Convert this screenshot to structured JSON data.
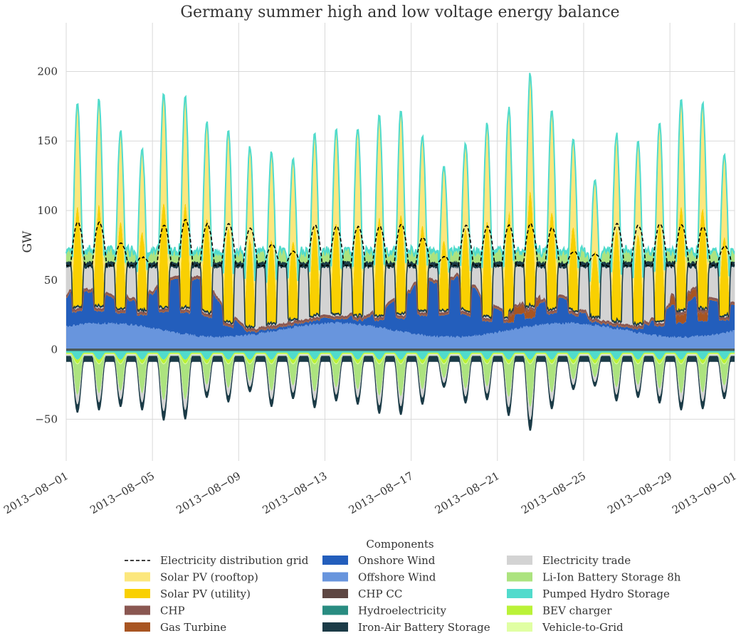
{
  "chart_data": {
    "type": "area",
    "title": "Germany summer high and low voltage energy balance",
    "xlabel": "",
    "ylabel": "GW",
    "ylim": [
      -80,
      235
    ],
    "yticks": [
      -50,
      0,
      50,
      100,
      150,
      200
    ],
    "x_start": "2013-08-01",
    "x_end": "2013-09-01",
    "xticks": [
      "2013−08−01",
      "2013−08−05",
      "2013−08−09",
      "2013−08−13",
      "2013−08−17",
      "2013−08−21",
      "2013−08−25",
      "2013−08−29",
      "2013−09−01"
    ],
    "grid": true,
    "legend_title": "Components",
    "legend_position": "bottom-center",
    "day_peaks_gw": [
      149,
      151,
      130,
      117,
      158,
      154,
      139,
      140,
      132,
      125,
      117,
      133,
      135,
      138,
      147,
      149,
      128,
      105,
      122,
      141,
      151,
      170,
      146,
      126,
      100,
      137,
      134,
      146,
      155,
      151,
      118
    ],
    "day_night_lows_gw": [
      -40,
      -38,
      -35,
      -38,
      -47,
      -46,
      -27,
      -31,
      -22,
      -35,
      -28,
      -36,
      -30,
      -33,
      -41,
      -42,
      -33,
      -18,
      -32,
      -29,
      -43,
      -56,
      -37,
      -20,
      -17,
      -30,
      -27,
      -32,
      -38,
      -37,
      -28
    ],
    "grid_demand_peak_gw": [
      91,
      91,
      76,
      66,
      89,
      93,
      90,
      90,
      87,
      75,
      70,
      89,
      88,
      88,
      88,
      90,
      80,
      66,
      89,
      88,
      89,
      90,
      87,
      70,
      68,
      90,
      89,
      90,
      89,
      88,
      74
    ],
    "series": [
      {
        "name": "Electricity distribution grid",
        "color": "#000000",
        "style": "dashed"
      },
      {
        "name": "Solar PV (rooftop)",
        "color": "#fce77d"
      },
      {
        "name": "Solar PV (utility)",
        "color": "#f9d002"
      },
      {
        "name": "CHP",
        "color": "#8a5751"
      },
      {
        "name": "Gas Turbine",
        "color": "#a85522"
      },
      {
        "name": "Onshore Wind",
        "color": "#235ebc"
      },
      {
        "name": "Offshore Wind",
        "color": "#6895dd"
      },
      {
        "name": "CHP CC",
        "color": "#5e4743"
      },
      {
        "name": "Hydroelectricity",
        "color": "#298c81"
      },
      {
        "name": "Iron-Air Battery Storage",
        "color": "#1b3b47"
      },
      {
        "name": "Electricity trade",
        "color": "#d3d3d3"
      },
      {
        "name": "Li-Ion Battery Storage 8h",
        "color": "#ace37f"
      },
      {
        "name": "Pumped Hydro Storage",
        "color": "#51dbcc"
      },
      {
        "name": "BEV charger",
        "color": "#baf238"
      },
      {
        "name": "Vehicle-to-Grid",
        "color": "#e0ffa3"
      }
    ]
  }
}
